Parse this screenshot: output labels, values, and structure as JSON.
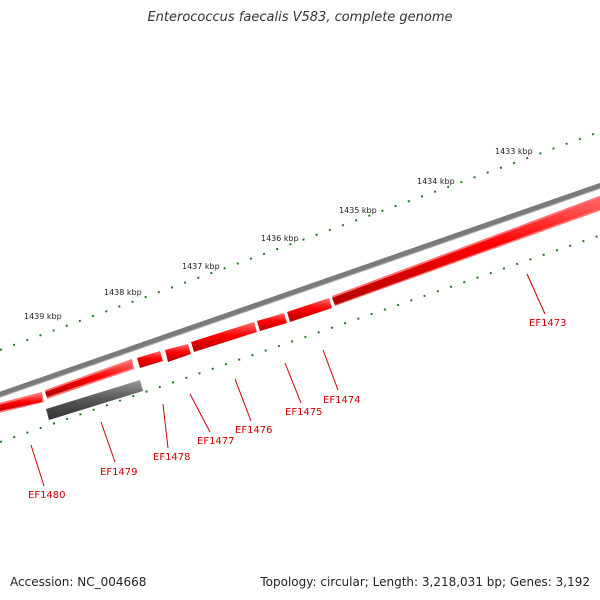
{
  "title": "Enterococcus faecalis V583, complete genome",
  "footer": {
    "accession": "Accession: NC_004668",
    "summary": "Topology: circular; Length: 3,218,031 bp; Genes: 3,192"
  },
  "colors": {
    "backbone": "#808080",
    "gene_forward": "#ff0000",
    "gene_reverse": "#555555",
    "ticks": "#1f7a1f",
    "gene_label": "#cc0000"
  },
  "scale": {
    "labels": [
      "1439 kbp",
      "1438 kbp",
      "1437 kbp",
      "1436 kbp",
      "1435 kbp",
      "1434 kbp",
      "1433 kbp"
    ]
  },
  "genes": [
    {
      "name": "EF1473",
      "strand": "forward"
    },
    {
      "name": "EF1474",
      "strand": "forward"
    },
    {
      "name": "EF1475",
      "strand": "forward"
    },
    {
      "name": "EF1476",
      "strand": "forward"
    },
    {
      "name": "EF1477",
      "strand": "forward"
    },
    {
      "name": "EF1478",
      "strand": "forward"
    },
    {
      "name": "EF1479",
      "strand": "reverse"
    },
    {
      "name": "EF1480",
      "strand": "forward"
    }
  ]
}
